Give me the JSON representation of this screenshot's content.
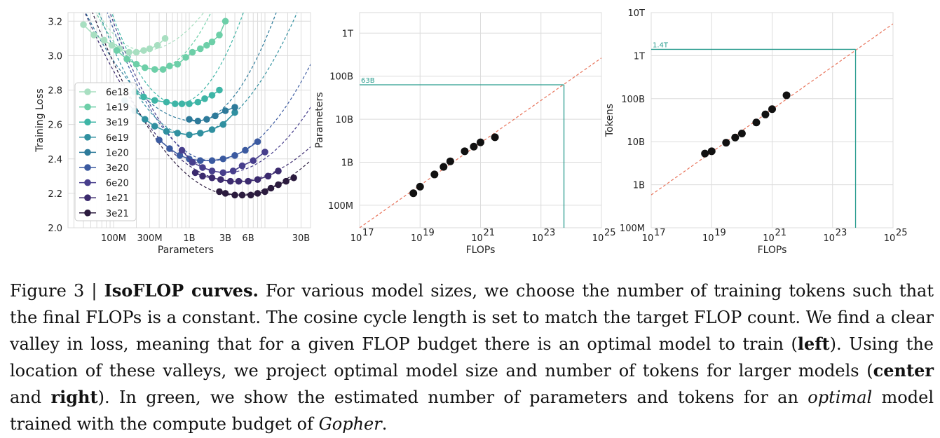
{
  "chart_data": [
    {
      "type": "line",
      "xlabel": "Parameters",
      "ylabel": "Training Loss",
      "xscale": "log",
      "xlim": [
        25000000,
        40000000000
      ],
      "ylim": [
        2.0,
        3.25
      ],
      "yticks": [
        2.0,
        2.2,
        2.4,
        2.6,
        2.8,
        3.0,
        3.2
      ],
      "ytick_labels": [
        "2.0",
        "2.2",
        "2.4",
        "2.6",
        "2.8",
        "3.0",
        "3.2"
      ],
      "xticks": [
        100000000,
        300000000,
        1000000000,
        3000000000,
        6000000000,
        30000000000
      ],
      "xtick_labels": [
        "100M",
        "300M",
        "1B",
        "3B",
        "6B",
        "30B"
      ],
      "grid": true,
      "legend": "left",
      "series": [
        {
          "name": "6e18",
          "color": "#a8dfc1",
          "fit": [
            3.03,
            250000000,
            0.6,
            0.35,
            1.5
          ],
          "x": [
            40000000,
            55000000,
            75000000,
            95000000,
            120000000,
            160000000,
            200000000,
            250000000,
            300000000,
            380000000,
            480000000
          ],
          "y": [
            3.18,
            3.12,
            3.09,
            3.06,
            3.04,
            3.02,
            3.02,
            3.03,
            3.04,
            3.06,
            3.1
          ]
        },
        {
          "name": "1e19",
          "color": "#6dcfa8",
          "fit": [
            2.92,
            350000000,
            0.55,
            0.6,
            2.0
          ],
          "x": [
            110000000,
            150000000,
            200000000,
            260000000,
            350000000,
            450000000,
            550000000,
            700000000,
            900000000,
            1100000000,
            1400000000,
            1700000000,
            2000000000,
            2500000000,
            3000000000
          ],
          "y": [
            3.03,
            2.98,
            2.95,
            2.93,
            2.92,
            2.92,
            2.94,
            2.95,
            2.99,
            3.02,
            3.04,
            3.06,
            3.08,
            3.12,
            3.2
          ]
        },
        {
          "name": "3e19",
          "color": "#3eb5a6",
          "fit": [
            2.72,
            700000000,
            0.7,
            0.7,
            2.0
          ],
          "x": [
            190000000,
            250000000,
            350000000,
            500000000,
            650000000,
            800000000,
            1000000000,
            1300000000,
            1600000000,
            2000000000,
            2500000000
          ],
          "y": [
            2.79,
            2.76,
            2.74,
            2.73,
            2.72,
            2.72,
            2.72,
            2.73,
            2.75,
            2.77,
            2.8
          ]
        },
        {
          "name": "6e19",
          "color": "#3090a0",
          "fit": [
            2.54,
            1000000000,
            0.5,
            0.35,
            2.0
          ],
          "x": [
            140000000,
            190000000,
            260000000,
            350000000,
            500000000,
            700000000,
            1000000000,
            1400000000,
            2000000000,
            2800000000,
            4000000000
          ],
          "y": [
            2.74,
            2.68,
            2.63,
            2.59,
            2.56,
            2.55,
            2.54,
            2.55,
            2.57,
            2.6,
            2.67
          ]
        },
        {
          "name": "1e20",
          "color": "#2d7a9a",
          "fit": [
            2.62,
            1200000000,
            0.3,
            0.55,
            2.0
          ],
          "x": [
            1000000000,
            1300000000,
            1700000000,
            2200000000,
            3000000000,
            4000000000
          ],
          "y": [
            2.63,
            2.62,
            2.63,
            2.65,
            2.68,
            2.7
          ]
        },
        {
          "name": "3e20",
          "color": "#3b5aa0",
          "fit": [
            2.39,
            2000000000,
            0.45,
            0.33,
            2.0
          ],
          "x": [
            400000000,
            550000000,
            750000000,
            1000000000,
            1400000000,
            2000000000,
            2800000000,
            4000000000,
            5500000000,
            8000000000
          ],
          "y": [
            2.51,
            2.46,
            2.42,
            2.4,
            2.39,
            2.39,
            2.4,
            2.42,
            2.45,
            2.5
          ]
        },
        {
          "name": "6e20",
          "color": "#473e8c",
          "fit": [
            2.32,
            3000000000,
            0.4,
            0.3,
            2.0
          ],
          "x": [
            800000000,
            1100000000,
            1500000000,
            2000000000,
            2800000000,
            3800000000,
            5000000000,
            7000000000,
            10000000000
          ],
          "y": [
            2.45,
            2.38,
            2.35,
            2.33,
            2.32,
            2.33,
            2.36,
            2.39,
            2.44
          ]
        },
        {
          "name": "1e21",
          "color": "#3b2a6e",
          "fit": [
            2.27,
            4000000000,
            0.25,
            0.2,
            2.0
          ],
          "x": [
            1200000000,
            1500000000,
            2000000000,
            2600000000,
            3500000000,
            4500000000,
            6000000000,
            8000000000,
            11000000000,
            15000000000
          ],
          "y": [
            2.32,
            2.3,
            2.29,
            2.28,
            2.27,
            2.27,
            2.27,
            2.28,
            2.3,
            2.33
          ]
        },
        {
          "name": "3e21",
          "color": "#2b1b3e",
          "fit": [
            2.19,
            4000000000,
            0.3,
            0.2,
            2.0
          ],
          "x": [
            2500000000,
            3000000000,
            4000000000,
            5000000000,
            6500000000,
            8000000000,
            10000000000,
            12000000000,
            15000000000,
            19000000000,
            24000000000
          ],
          "y": [
            2.21,
            2.2,
            2.19,
            2.19,
            2.19,
            2.2,
            2.21,
            2.23,
            2.25,
            2.27,
            2.29
          ]
        }
      ]
    },
    {
      "type": "scatter",
      "xlabel": "FLOPs",
      "ylabel": "Parameters",
      "xscale": "log",
      "yscale": "log",
      "xlim": [
        1e+17,
        1e+25
      ],
      "ylim": [
        30000000,
        3000000000000
      ],
      "xtick_labels": [
        "10",
        "10",
        "10",
        "10",
        "10"
      ],
      "xtick_exponents": [
        "17",
        "19",
        "21",
        "23",
        "25"
      ],
      "yticks": [
        100000000,
        1000000000,
        10000000000,
        100000000000,
        1000000000000
      ],
      "ytick_labels": [
        "100M",
        "1B",
        "10B",
        "100B",
        "1T"
      ],
      "x": [
        6e+18,
        1e+19,
        3e+19,
        6e+19,
        1e+20,
        3e+20,
        6e+20,
        1e+21,
        3e+21
      ],
      "y": [
        190000000,
        270000000,
        520000000,
        780000000,
        1050000000,
        1800000000,
        2300000000,
        2900000000,
        3800000000
      ],
      "fit_line": {
        "x": [
          1e+17,
          1e+25
        ],
        "y": [
          30000000,
          265000000000
        ]
      },
      "annotation": {
        "label": "63B",
        "x": 5.76e+23,
        "y": 63000000000
      },
      "grid": true
    },
    {
      "type": "scatter",
      "xlabel": "FLOPs",
      "ylabel": "Tokens",
      "xscale": "log",
      "yscale": "log",
      "xlim": [
        1e+17,
        1e+25
      ],
      "ylim": [
        100000000,
        10000000000000
      ],
      "xtick_labels": [
        "10",
        "10",
        "10",
        "10",
        "10"
      ],
      "xtick_exponents": [
        "17",
        "19",
        "21",
        "23",
        "25"
      ],
      "yticks": [
        100000000,
        1000000000,
        10000000000,
        100000000000,
        1000000000000,
        10000000000000
      ],
      "ytick_labels": [
        "100M",
        "1B",
        "10B",
        "100B",
        "1T",
        "10T"
      ],
      "x": [
        6e+18,
        1e+19,
        3e+19,
        6e+19,
        1e+20,
        3e+20,
        6e+20,
        1e+21,
        3e+21
      ],
      "y": [
        5300000000,
        6000000000,
        9500000000,
        12500000000,
        15500000000,
        28000000000,
        43000000000,
        57000000000,
        120000000000
      ],
      "fit_line": {
        "x": [
          1e+17,
          1e+25
        ],
        "y": [
          580000000,
          5500000000000
        ]
      },
      "annotation": {
        "label": "1.4T",
        "x": 5.76e+23,
        "y": 1400000000000
      },
      "grid": true
    }
  ],
  "caption": {
    "fig_label": "Figure 3 |",
    "title": "IsoFLOP curves.",
    "text1": "For various model sizes, we choose the number of training tokens such that the final FLOPs is a constant. The cosine cycle length is set to match the target FLOP count. We find a clear valley in loss, meaning that for a given FLOP budget there is an optimal model to train (",
    "left": "left",
    "text2": "). Using the location of these valleys, we project optimal model size and number of tokens for larger models (",
    "center": "center",
    "and": "and",
    "right": "right",
    "text3": "). In green, we show the estimated number of parameters and tokens for an",
    "optimal": "optimal",
    "text4": "model trained with the compute budget of",
    "gopher": "Gopher",
    "period": "."
  }
}
